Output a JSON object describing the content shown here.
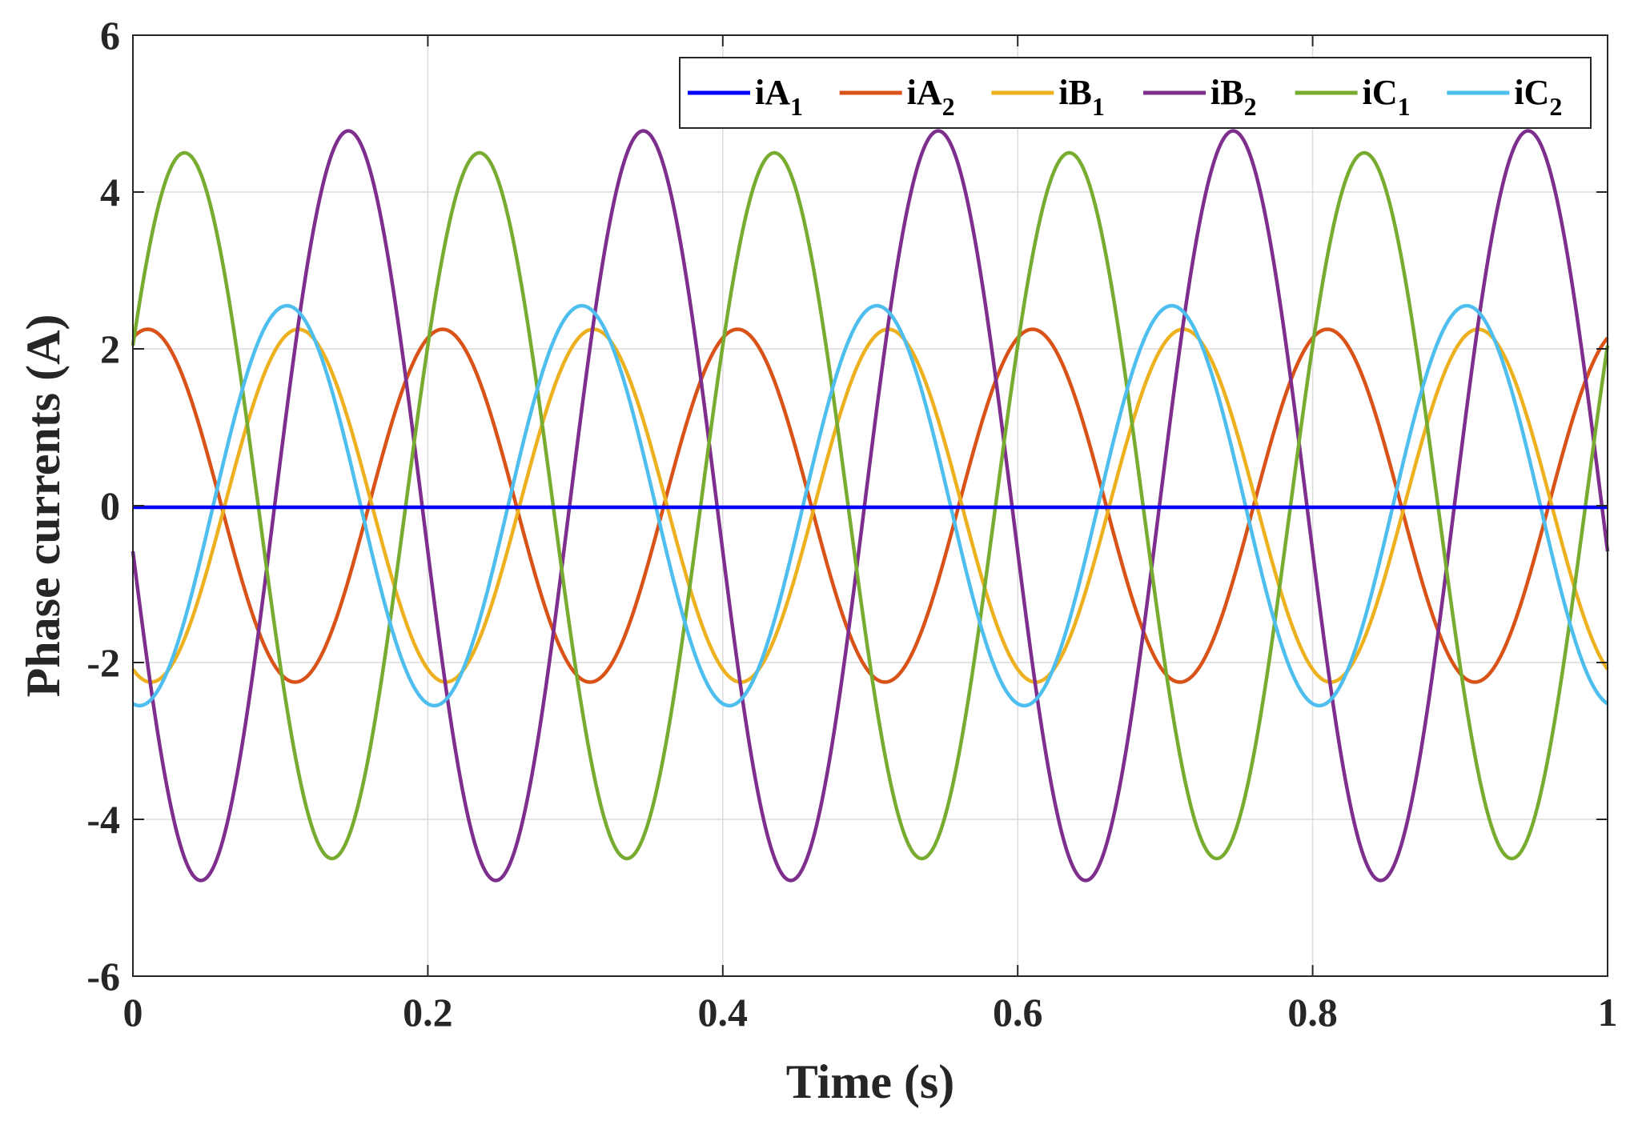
{
  "chart_data": {
    "type": "line",
    "title": "",
    "xlabel": "Time (s)",
    "ylabel": "Phase currents (A)",
    "xlim": [
      0,
      1
    ],
    "ylim": [
      -6,
      6
    ],
    "xticks": [
      0,
      0.2,
      0.4,
      0.6,
      0.8,
      1
    ],
    "xtick_labels": [
      "0",
      "0.2",
      "0.4",
      "0.6",
      "0.8",
      "1"
    ],
    "yticks": [
      -6,
      -4,
      -2,
      0,
      2,
      4,
      6
    ],
    "ytick_labels": [
      "-6",
      "-4",
      "-2",
      "0",
      "2",
      "4",
      "6"
    ],
    "grid": true,
    "legend_position": "top-right",
    "period_s": 0.2,
    "series": [
      {
        "name": "iA",
        "subscript": "1",
        "color": "#0000ff",
        "amplitude": 0.0,
        "phase_deg": 0,
        "offset": -0.02
      },
      {
        "name": "iA",
        "subscript": "2",
        "color": "#d95319",
        "amplitude": 2.25,
        "phase_deg": 72,
        "offset": 0
      },
      {
        "name": "iB",
        "subscript": "1",
        "color": "#edb120",
        "amplitude": 2.25,
        "phase_deg": -112,
        "offset": 0
      },
      {
        "name": "iB",
        "subscript": "2",
        "color": "#7e2f8e",
        "amplitude": 4.78,
        "phase_deg": 187,
        "offset": 0
      },
      {
        "name": "iC",
        "subscript": "1",
        "color": "#77ac30",
        "amplitude": 4.5,
        "phase_deg": 27,
        "offset": 0
      },
      {
        "name": "iC",
        "subscript": "2",
        "color": "#4dbeee",
        "amplitude": 2.55,
        "phase_deg": -98,
        "offset": 0
      }
    ]
  }
}
